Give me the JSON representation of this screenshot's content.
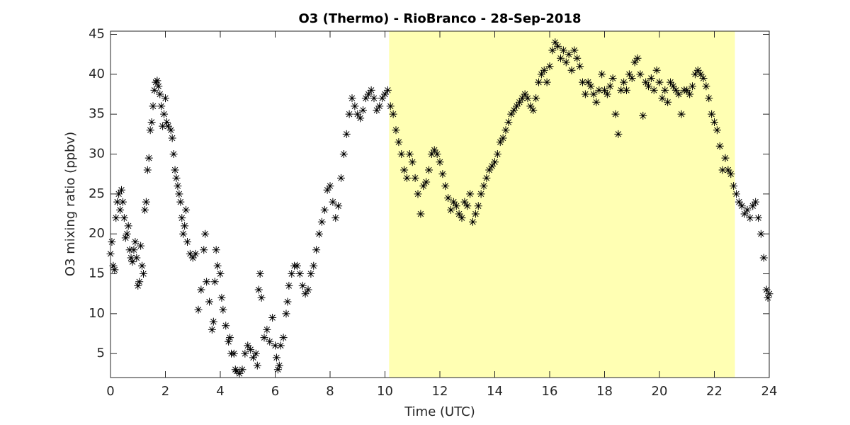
{
  "chart_data": {
    "type": "scatter",
    "title": "O3 (Thermo) - RioBranco - 28-Sep-2018",
    "x_label": "Time (UTC)",
    "y_label": "O3 mixing ratio (ppbv)",
    "xlim": [
      0,
      24
    ],
    "ylim": [
      2,
      45.4
    ],
    "xticks": [
      0,
      2,
      4,
      6,
      8,
      10,
      12,
      14,
      16,
      18,
      20,
      22,
      24
    ],
    "yticks": [
      5,
      10,
      15,
      20,
      25,
      30,
      35,
      40,
      45
    ],
    "highlight_x": [
      10.15,
      22.75
    ],
    "highlight_color": "#ffffb3",
    "color": "#000000",
    "marker": "asterisk",
    "x": [
      0.0,
      0.05,
      0.1,
      0.15,
      0.2,
      0.25,
      0.3,
      0.35,
      0.4,
      0.45,
      0.5,
      0.55,
      0.6,
      0.65,
      0.7,
      0.75,
      0.8,
      0.85,
      0.9,
      0.95,
      1.0,
      1.05,
      1.1,
      1.15,
      1.2,
      1.25,
      1.3,
      1.35,
      1.4,
      1.45,
      1.5,
      1.55,
      1.6,
      1.65,
      1.7,
      1.75,
      1.8,
      1.85,
      1.9,
      1.95,
      2.0,
      2.05,
      2.1,
      2.2,
      2.25,
      2.3,
      2.35,
      2.4,
      2.45,
      2.5,
      2.55,
      2.6,
      2.65,
      2.7,
      2.75,
      2.8,
      2.9,
      3.0,
      3.1,
      3.2,
      3.3,
      3.4,
      3.45,
      3.5,
      3.6,
      3.7,
      3.75,
      3.8,
      3.85,
      3.9,
      4.0,
      4.05,
      4.1,
      4.2,
      4.3,
      4.35,
      4.4,
      4.5,
      4.55,
      4.6,
      4.7,
      4.8,
      4.9,
      5.0,
      5.1,
      5.2,
      5.3,
      5.35,
      5.4,
      5.45,
      5.5,
      5.6,
      5.7,
      5.8,
      5.9,
      6.0,
      6.05,
      6.1,
      6.15,
      6.2,
      6.3,
      6.4,
      6.45,
      6.5,
      6.6,
      6.7,
      6.8,
      6.9,
      7.0,
      7.1,
      7.2,
      7.3,
      7.4,
      7.5,
      7.6,
      7.7,
      7.8,
      7.9,
      8.0,
      8.1,
      8.2,
      8.3,
      8.4,
      8.5,
      8.6,
      8.7,
      8.8,
      8.9,
      9.0,
      9.1,
      9.2,
      9.3,
      9.4,
      9.5,
      9.6,
      9.7,
      9.8,
      9.9,
      10.0,
      10.1,
      10.2,
      10.3,
      10.4,
      10.5,
      10.6,
      10.7,
      10.8,
      10.9,
      11.0,
      11.1,
      11.2,
      11.3,
      11.4,
      11.5,
      11.6,
      11.7,
      11.8,
      11.9,
      12.0,
      12.1,
      12.2,
      12.3,
      12.4,
      12.5,
      12.6,
      12.7,
      12.8,
      12.9,
      13.0,
      13.1,
      13.2,
      13.3,
      13.4,
      13.5,
      13.6,
      13.7,
      13.8,
      13.9,
      14.0,
      14.1,
      14.2,
      14.3,
      14.4,
      14.5,
      14.6,
      14.7,
      14.8,
      14.9,
      15.0,
      15.1,
      15.2,
      15.3,
      15.4,
      15.5,
      15.6,
      15.7,
      15.8,
      15.9,
      16.0,
      16.1,
      16.2,
      16.3,
      16.4,
      16.5,
      16.6,
      16.7,
      16.8,
      16.9,
      17.0,
      17.1,
      17.2,
      17.3,
      17.4,
      17.5,
      17.6,
      17.7,
      17.8,
      17.9,
      18.0,
      18.1,
      18.2,
      18.3,
      18.4,
      18.5,
      18.6,
      18.7,
      18.8,
      18.9,
      19.0,
      19.1,
      19.2,
      19.3,
      19.4,
      19.5,
      19.6,
      19.7,
      19.8,
      19.9,
      20.0,
      20.1,
      20.2,
      20.3,
      20.4,
      20.5,
      20.6,
      20.7,
      20.8,
      20.9,
      21.0,
      21.1,
      21.2,
      21.3,
      21.4,
      21.5,
      21.6,
      21.7,
      21.8,
      21.9,
      22.0,
      22.1,
      22.2,
      22.3,
      22.4,
      22.5,
      22.6,
      22.7,
      22.8,
      22.9,
      23.0,
      23.1,
      23.2,
      23.3,
      23.4,
      23.5,
      23.6,
      23.7,
      23.8,
      23.9,
      23.95,
      24.0
    ],
    "values": [
      17.5,
      19,
      16,
      15.5,
      22,
      24,
      25,
      23,
      25.5,
      24,
      22,
      19.5,
      20,
      21,
      18,
      17,
      16.5,
      18,
      19,
      17,
      13.5,
      14,
      18.5,
      16,
      15,
      23,
      24,
      28,
      29.5,
      33,
      34,
      36,
      38,
      39,
      39.2,
      38.5,
      37.5,
      36,
      33.5,
      35,
      37,
      34,
      33.5,
      33,
      32,
      30,
      28,
      27,
      26,
      25,
      24,
      22,
      20,
      21,
      23,
      19,
      17.5,
      17,
      17.5,
      10.5,
      13,
      18,
      20,
      14,
      11.5,
      8,
      9,
      14,
      18,
      16,
      15,
      12,
      10.5,
      8.5,
      6.5,
      7,
      5,
      5,
      3,
      2.8,
      2.5,
      3,
      5,
      6,
      5.5,
      4.5,
      5,
      3.5,
      13,
      15,
      12,
      7,
      8,
      6.5,
      9.5,
      6,
      4.5,
      3,
      3.5,
      6,
      7,
      10,
      11.5,
      13.5,
      15,
      16,
      16,
      15,
      13.5,
      12.5,
      13,
      15,
      16,
      18,
      20,
      21.5,
      23,
      25.5,
      26,
      24,
      22,
      23.5,
      27,
      30,
      32.5,
      35,
      37,
      36,
      35,
      34.5,
      35.5,
      37,
      37.5,
      38,
      37,
      35.5,
      36,
      37,
      37.5,
      38,
      36,
      35,
      33,
      31.5,
      30,
      28,
      27,
      30,
      29,
      27,
      25,
      22.5,
      26,
      26.5,
      28,
      30,
      30.5,
      30,
      29,
      27.5,
      26,
      24.5,
      23,
      24,
      23.5,
      22.5,
      22,
      24,
      23.5,
      25,
      21.5,
      22.5,
      23.5,
      25,
      26,
      27,
      28,
      28.5,
      29,
      30,
      31.5,
      32,
      33,
      34,
      35,
      35.5,
      36,
      36.5,
      37,
      37.5,
      37,
      36,
      35.5,
      37,
      39,
      40,
      40.5,
      39,
      41,
      43,
      44,
      43.5,
      42,
      43,
      41.5,
      42.5,
      40.5,
      43,
      42,
      41,
      39,
      37.5,
      39,
      38.5,
      37.5,
      36.5,
      38,
      40,
      38,
      37.5,
      38.5,
      39.5,
      35,
      32.5,
      38,
      39,
      38,
      40,
      39.5,
      41.5,
      42,
      40,
      34.8,
      39,
      38.5,
      39.5,
      38,
      40.5,
      39,
      37,
      38,
      36.5,
      39,
      38.5,
      38,
      37.5,
      35,
      38,
      38,
      37.5,
      38.5,
      40,
      40.5,
      40,
      39.5,
      38.5,
      37,
      35,
      34,
      33,
      31,
      28,
      29.5,
      28,
      27.5,
      26,
      25,
      24,
      23.5,
      22.5,
      23,
      22,
      23.5,
      24,
      22,
      20,
      17,
      13,
      12,
      12.5
    ]
  }
}
